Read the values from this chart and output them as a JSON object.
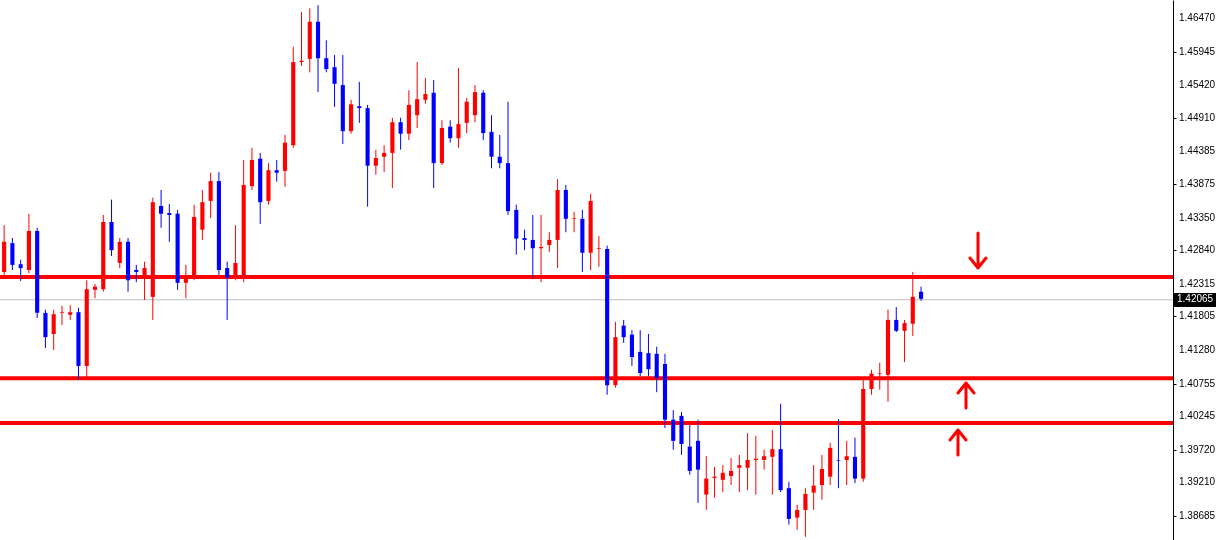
{
  "chart_data": {
    "type": "candlestick",
    "categories": [
      null,
      null,
      null,
      null,
      null,
      null,
      null,
      null,
      null,
      null,
      null,
      null,
      null,
      null,
      null,
      null,
      null,
      null,
      null,
      null,
      null,
      null,
      null,
      null,
      null,
      null,
      null,
      null,
      null,
      null,
      null,
      null,
      null,
      null,
      null,
      null,
      null,
      null,
      null,
      null,
      null,
      null,
      null,
      null,
      null,
      null,
      null,
      null,
      null,
      null,
      null,
      null,
      null,
      null,
      null,
      null,
      null,
      null,
      null,
      null,
      null,
      null,
      null,
      null,
      null,
      null,
      null,
      null,
      null,
      null,
      null,
      null,
      null,
      null,
      null,
      null,
      null,
      null,
      null,
      null,
      null,
      null,
      null,
      null,
      null,
      null,
      null,
      null,
      null,
      null,
      null,
      null,
      null,
      null,
      null,
      null,
      null,
      null,
      null,
      null,
      null,
      null,
      null,
      null,
      null,
      null,
      null,
      null,
      null,
      null,
      null,
      null,
      null,
      null,
      null,
      null,
      null,
      null,
      null,
      null,
      null,
      null,
      null,
      null,
      null,
      null,
      null,
      null,
      null,
      null,
      null,
      null,
      null,
      null,
      null,
      null,
      null,
      null,
      null,
      null,
      null,
      null
    ],
    "ohlc": [
      [
        1.425,
        1.4323,
        1.4245,
        1.4297
      ],
      [
        1.4295,
        1.4303,
        1.4253,
        1.4261
      ],
      [
        1.4262,
        1.4269,
        1.4236,
        1.4256
      ],
      [
        1.4253,
        1.4341,
        1.4248,
        1.4314
      ],
      [
        1.4314,
        1.4319,
        1.4178,
        1.4186
      ],
      [
        1.4186,
        1.4191,
        1.4131,
        1.4148
      ],
      [
        1.4153,
        1.4191,
        1.4128,
        1.4184
      ],
      [
        1.4186,
        1.4197,
        1.4167,
        1.4187
      ],
      [
        1.4183,
        1.4198,
        1.4175,
        1.4187
      ],
      [
        1.4187,
        1.4194,
        1.4081,
        1.4103
      ],
      [
        1.4103,
        1.4237,
        1.4084,
        1.4223
      ],
      [
        1.4222,
        1.4231,
        1.4209,
        1.4227
      ],
      [
        1.4223,
        1.4339,
        1.4219,
        1.4328
      ],
      [
        1.4328,
        1.4363,
        1.4275,
        1.4284
      ],
      [
        1.4264,
        1.4303,
        1.4256,
        1.4297
      ],
      [
        1.4297,
        1.4303,
        1.4219,
        1.4237
      ],
      [
        1.4253,
        1.4261,
        1.4234,
        1.425
      ],
      [
        1.4244,
        1.4266,
        1.4206,
        1.4256
      ],
      [
        1.4211,
        1.4366,
        1.4175,
        1.4359
      ],
      [
        1.4353,
        1.4378,
        1.4319,
        1.4341
      ],
      [
        1.4342,
        1.4356,
        1.4297,
        1.4339
      ],
      [
        1.4341,
        1.4347,
        1.4222,
        1.4233
      ],
      [
        1.4233,
        1.4261,
        1.4209,
        1.4244
      ],
      [
        1.4245,
        1.4355,
        1.4237,
        1.4336
      ],
      [
        1.4316,
        1.4378,
        1.43,
        1.4359
      ],
      [
        1.4361,
        1.4405,
        1.4334,
        1.4392
      ],
      [
        1.4392,
        1.4406,
        1.4245,
        1.4253
      ],
      [
        1.4256,
        1.4266,
        1.4175,
        1.4241
      ],
      [
        1.4241,
        1.4323,
        1.4237,
        1.4264
      ],
      [
        1.4245,
        1.4425,
        1.4234,
        1.4386
      ],
      [
        1.4384,
        1.4444,
        1.4378,
        1.4425
      ],
      [
        1.4427,
        1.4436,
        1.4325,
        1.4359
      ],
      [
        1.4361,
        1.442,
        1.4355,
        1.4409
      ],
      [
        1.4409,
        1.4425,
        1.4391,
        1.4405
      ],
      [
        1.4408,
        1.4464,
        1.4383,
        1.4452
      ],
      [
        1.4448,
        1.4602,
        1.4444,
        1.4578
      ],
      [
        1.4578,
        1.4656,
        1.4572,
        1.458
      ],
      [
        1.4583,
        1.4662,
        1.4562,
        1.4641
      ],
      [
        1.4641,
        1.4667,
        1.4531,
        1.4584
      ],
      [
        1.4584,
        1.4612,
        1.4562,
        1.4567
      ],
      [
        1.457,
        1.4589,
        1.4508,
        1.4544
      ],
      [
        1.4542,
        1.4589,
        1.445,
        1.447
      ],
      [
        1.447,
        1.4519,
        1.4466,
        1.4512
      ],
      [
        1.4509,
        1.4547,
        1.4483,
        1.4506
      ],
      [
        1.4506,
        1.4511,
        1.4352,
        1.4416
      ],
      [
        1.4416,
        1.4441,
        1.4402,
        1.4428
      ],
      [
        1.443,
        1.4448,
        1.4406,
        1.4436
      ],
      [
        1.4436,
        1.4491,
        1.4381,
        1.4484
      ],
      [
        1.4484,
        1.4491,
        1.4441,
        1.4466
      ],
      [
        1.4466,
        1.4534,
        1.4456,
        1.4511
      ],
      [
        1.4495,
        1.4578,
        1.4475,
        1.452
      ],
      [
        1.4519,
        1.4553,
        1.4513,
        1.4528
      ],
      [
        1.453,
        1.455,
        1.4381,
        1.442
      ],
      [
        1.442,
        1.4487,
        1.4417,
        1.4475
      ],
      [
        1.4477,
        1.4487,
        1.4452,
        1.4459
      ],
      [
        1.4459,
        1.4569,
        1.4444,
        1.4481
      ],
      [
        1.4483,
        1.4522,
        1.4467,
        1.4516
      ],
      [
        1.4495,
        1.4542,
        1.4484,
        1.4531
      ],
      [
        1.453,
        1.4534,
        1.4456,
        1.4467
      ],
      [
        1.4469,
        1.4495,
        1.4412,
        1.443
      ],
      [
        1.443,
        1.4464,
        1.4412,
        1.442
      ],
      [
        1.442,
        1.4516,
        1.4339,
        1.4345
      ],
      [
        1.4347,
        1.4355,
        1.4277,
        1.4302
      ],
      [
        1.4303,
        1.4316,
        1.4284,
        1.43
      ],
      [
        1.43,
        1.4339,
        1.4241,
        1.4287
      ],
      [
        1.4287,
        1.4339,
        1.4234,
        1.4289
      ],
      [
        1.4292,
        1.4312,
        1.4281,
        1.43
      ],
      [
        1.43,
        1.4395,
        1.4256,
        1.4378
      ],
      [
        1.4378,
        1.4386,
        1.4312,
        1.4333
      ],
      [
        1.4333,
        1.4344,
        1.4312,
        1.4334
      ],
      [
        1.4333,
        1.4347,
        1.425,
        1.428
      ],
      [
        1.428,
        1.4372,
        1.4253,
        1.4361
      ],
      [
        1.4286,
        1.4306,
        1.4258,
        1.4287
      ],
      [
        1.4286,
        1.4291,
        1.4058,
        1.4073
      ],
      [
        1.4073,
        1.4172,
        1.4069,
        1.4148
      ],
      [
        1.4166,
        1.4175,
        1.4139,
        1.4148
      ],
      [
        1.4152,
        1.4159,
        1.4103,
        1.4117
      ],
      [
        1.4125,
        1.4159,
        1.4087,
        1.4092
      ],
      [
        1.4123,
        1.4153,
        1.4087,
        1.4098
      ],
      [
        1.4122,
        1.4133,
        1.4062,
        1.4084
      ],
      [
        1.4106,
        1.4122,
        1.4006,
        1.4019
      ],
      [
        1.4019,
        1.4034,
        1.3972,
        1.3986
      ],
      [
        1.4025,
        1.4031,
        1.3964,
        1.3981
      ],
      [
        1.3977,
        1.4011,
        1.3933,
        1.3939
      ],
      [
        1.3986,
        1.4019,
        1.3889,
        1.3941
      ],
      [
        1.3902,
        1.3962,
        1.3878,
        1.3927
      ],
      [
        1.3928,
        1.3945,
        1.3897,
        1.393
      ],
      [
        1.3925,
        1.3948,
        1.3906,
        1.3936
      ],
      [
        1.3931,
        1.3959,
        1.3917,
        1.3939
      ],
      [
        1.3944,
        1.3964,
        1.3906,
        1.3948
      ],
      [
        1.3944,
        1.3998,
        1.3909,
        1.3956
      ],
      [
        1.3956,
        1.3994,
        1.3902,
        1.3958
      ],
      [
        1.3956,
        1.3972,
        1.3941,
        1.3962
      ],
      [
        1.3961,
        1.4003,
        1.3902,
        1.3973
      ],
      [
        1.3973,
        1.4044,
        1.3906,
        1.3909
      ],
      [
        1.3912,
        1.3922,
        1.3855,
        1.3864
      ],
      [
        1.3866,
        1.3886,
        1.3847,
        1.3878
      ],
      [
        1.3878,
        1.3912,
        1.3836,
        1.3903
      ],
      [
        1.3905,
        1.3948,
        1.3878,
        1.3916
      ],
      [
        1.3917,
        1.3964,
        1.3894,
        1.3942
      ],
      [
        1.393,
        1.3983,
        1.3917,
        1.3975
      ],
      [
        1.3956,
        1.402,
        1.3912,
        1.3955
      ],
      [
        1.3956,
        1.3986,
        1.3917,
        1.3962
      ],
      [
        1.3961,
        1.3991,
        1.392,
        1.3927
      ],
      [
        1.3927,
        1.4081,
        1.3922,
        1.4067
      ],
      [
        1.4067,
        1.4097,
        1.4058,
        1.4091
      ],
      [
        1.4091,
        1.4108,
        1.4066,
        1.4092
      ],
      [
        1.4089,
        1.4191,
        1.4047,
        1.4175
      ],
      [
        1.4175,
        1.4195,
        1.4156,
        1.4158
      ],
      [
        1.4158,
        1.4175,
        1.4109,
        1.417
      ],
      [
        1.4169,
        1.425,
        1.415,
        1.4211
      ],
      [
        1.4219,
        1.4227,
        1.4205,
        1.4208
      ],
      null,
      null,
      null,
      null,
      null,
      null,
      null,
      null,
      null,
      null,
      null,
      null,
      null,
      null,
      null,
      null,
      null,
      null,
      null,
      null,
      null,
      null,
      null,
      null,
      null,
      null,
      null,
      null,
      null,
      null
    ],
    "colors": [
      "#ff0000",
      "#0000ff",
      "#0000ff",
      "#ff0000",
      "#0000ff",
      "#0000ff",
      "#ff0000",
      "#ff0000",
      "#ff0000",
      "#0000ff",
      "#ff0000",
      "#ff0000",
      "#ff0000",
      "#0000ff",
      "#ff0000",
      "#0000ff",
      "#0000ff",
      "#ff0000",
      "#ff0000",
      "#0000ff",
      "#0000ff",
      "#0000ff",
      "#ff0000",
      "#ff0000",
      "#ff0000",
      "#ff0000",
      "#0000ff",
      "#0000ff",
      "#ff0000",
      "#ff0000",
      "#ff0000",
      "#0000ff",
      "#ff0000",
      "#0000ff",
      "#ff0000",
      "#ff0000",
      "#ff0000",
      "#ff0000",
      "#0000ff",
      "#0000ff",
      "#0000ff",
      "#0000ff",
      "#ff0000",
      "#0000ff",
      "#0000ff",
      "#ff0000",
      "#ff0000",
      "#ff0000",
      "#0000ff",
      "#ff0000",
      "#ff0000",
      "#ff0000",
      "#0000ff",
      "#ff0000",
      "#0000ff",
      "#ff0000",
      "#ff0000",
      "#ff0000",
      "#0000ff",
      "#0000ff",
      "#0000ff",
      "#0000ff",
      "#0000ff",
      "#0000ff",
      "#0000ff",
      "#ff0000",
      "#ff0000",
      "#ff0000",
      "#0000ff",
      "#ff0000",
      "#0000ff",
      "#ff0000",
      "#ff0000",
      "#0000ff",
      "#ff0000",
      "#0000ff",
      "#0000ff",
      "#0000ff",
      "#0000ff",
      "#0000ff",
      "#0000ff",
      "#0000ff",
      "#0000ff",
      "#0000ff",
      "#0000ff",
      "#ff0000",
      "#ff0000",
      "#ff0000",
      "#ff0000",
      "#ff0000",
      "#ff0000",
      "#ff0000",
      "#ff0000",
      "#ff0000",
      "#0000ff",
      "#0000ff",
      "#ff0000",
      "#ff0000",
      "#ff0000",
      "#ff0000",
      "#ff0000",
      "#0000ff",
      "#ff0000",
      "#0000ff",
      "#ff0000",
      "#ff0000",
      "#ff0000",
      "#ff0000",
      "#0000ff",
      "#ff0000",
      "#ff0000",
      "#0000ff",
      null,
      null,
      null,
      null,
      null,
      null,
      null,
      null,
      null,
      null,
      null,
      null,
      null,
      null,
      null,
      null,
      null,
      null,
      null,
      null,
      null,
      null,
      null,
      null,
      null,
      null,
      null,
      null,
      null,
      null
    ],
    "ylim": [
      1.3831,
      1.4675
    ],
    "yticks": [
      {
        "value": 1.4647,
        "label": "1.46470"
      },
      {
        "value": 1.45945,
        "label": "1.45945"
      },
      {
        "value": 1.4542,
        "label": "1.45420"
      },
      {
        "value": 1.4491,
        "label": "1.44910"
      },
      {
        "value": 1.44385,
        "label": "1.44385"
      },
      {
        "value": 1.43875,
        "label": "1.43875"
      },
      {
        "value": 1.4335,
        "label": "1.43350"
      },
      {
        "value": 1.4284,
        "label": "1.42840"
      },
      {
        "value": 1.42315,
        "label": "1.42315"
      },
      {
        "value": 1.41805,
        "label": "1.41805"
      },
      {
        "value": 1.4128,
        "label": "1.41280"
      },
      {
        "value": 1.40755,
        "label": "1.40755"
      },
      {
        "value": 1.40245,
        "label": "1.40245"
      },
      {
        "value": 1.3972,
        "label": "1.39720"
      },
      {
        "value": 1.3921,
        "label": "1.39210"
      },
      {
        "value": 1.38685,
        "label": "1.38685"
      }
    ],
    "tick_labels": "y",
    "ref_lines": [
      {
        "axis": "y",
        "value": 1.4242,
        "color": "#ff0000"
      },
      {
        "axis": "y",
        "value": 1.4084,
        "color": "#ff0000"
      },
      {
        "axis": "y",
        "value": 1.4014,
        "color": "#ff0000"
      },
      {
        "axis": "y",
        "value": 1.42065,
        "label": "1.42065",
        "color": "#c0c0c0"
      }
    ]
  }
}
